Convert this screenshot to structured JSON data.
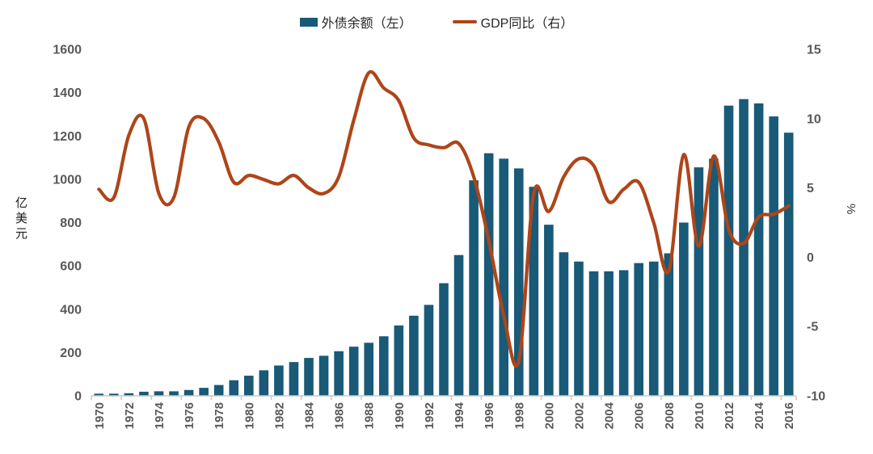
{
  "chart_data": {
    "type": "combo",
    "title": "",
    "background": "#FFFFFF",
    "grid": false,
    "legend_position": "top-center",
    "categories": [
      1970,
      1971,
      1972,
      1973,
      1974,
      1975,
      1976,
      1977,
      1978,
      1979,
      1980,
      1981,
      1982,
      1983,
      1984,
      1985,
      1986,
      1987,
      1988,
      1989,
      1990,
      1991,
      1992,
      1993,
      1994,
      1995,
      1996,
      1997,
      1998,
      1999,
      2000,
      2001,
      2002,
      2003,
      2004,
      2005,
      2006,
      2007,
      2008,
      2009,
      2010,
      2011,
      2012,
      2013,
      2014,
      2015,
      2016
    ],
    "x_tick_labels": [
      "1970",
      "1972",
      "1974",
      "1976",
      "1978",
      "1980",
      "1982",
      "1984",
      "1986",
      "1988",
      "1990",
      "1992",
      "1994",
      "1996",
      "1998",
      "2000",
      "2002",
      "2004",
      "2006",
      "2008",
      "2010",
      "2012",
      "2014",
      "2016"
    ],
    "series": [
      {
        "name": "外债余额（左）",
        "type": "bar",
        "axis": "left",
        "color": "#185A77",
        "values": [
          10,
          10,
          12,
          19,
          21,
          21,
          27,
          37,
          50,
          72,
          93,
          118,
          140,
          156,
          175,
          185,
          206,
          227,
          245,
          275,
          325,
          370,
          420,
          520,
          650,
          995,
          1120,
          1095,
          1050,
          965,
          790,
          663,
          620,
          575,
          575,
          580,
          613,
          620,
          658,
          800,
          1055,
          1095,
          1340,
          1370,
          1350,
          1290,
          1215
        ]
      },
      {
        "name": "GDP同比（右）",
        "type": "line",
        "axis": "right",
        "color": "#AE4519",
        "values": [
          4.9,
          4.3,
          8.8,
          10.0,
          4.6,
          4.3,
          9.4,
          10.0,
          8.3,
          5.4,
          5.9,
          5.6,
          5.3,
          5.9,
          5.0,
          4.6,
          5.8,
          9.9,
          13.3,
          12.2,
          11.3,
          8.6,
          8.1,
          7.9,
          8.2,
          5.8,
          1.2,
          -4.2,
          -7.5,
          4.6,
          3.3,
          5.8,
          7.1,
          6.6,
          4.0,
          4.9,
          5.4,
          2.5,
          -1.0,
          7.4,
          0.8,
          7.3,
          2.0,
          1.0,
          2.9,
          3.1,
          3.7
        ]
      }
    ],
    "y_left": {
      "title": "亿美元",
      "min": 0,
      "max": 1600,
      "step": 200,
      "ticks": [
        "0",
        "200",
        "400",
        "600",
        "800",
        "1000",
        "1200",
        "1400",
        "1600"
      ]
    },
    "y_right": {
      "title": "%",
      "min": -10,
      "max": 15,
      "step": 5,
      "ticks": [
        "-10",
        "-5",
        "0",
        "5",
        "10",
        "15"
      ]
    },
    "axis_line_color": "#C9C9C9",
    "tick_label_color": "#595959",
    "legend_text_color": "#262626"
  }
}
